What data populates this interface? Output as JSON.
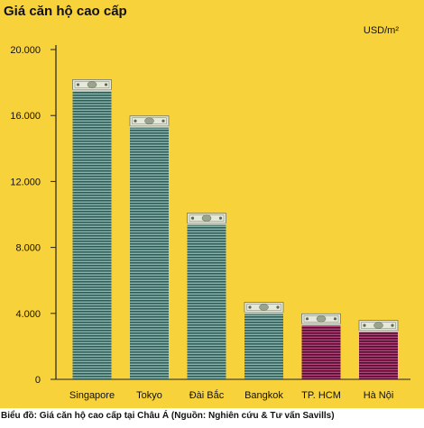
{
  "title": "Giá căn hộ cao cấp",
  "unit_text": "USD/m²",
  "caption": "Biểu đồ: Giá căn hộ cao cấp tại Châu Á (Nguồn: Nghiên cứu & Tư vấn Savills)",
  "colors": {
    "background": "#f7d23a",
    "bar_teal_dark": "#2f5a56",
    "bar_teal_light": "#86b3ab",
    "bar_magenta_dark": "#4e0c2c",
    "bar_magenta_light": "#b5407a",
    "banknote": "#e6e8da"
  },
  "chart_data": {
    "type": "bar",
    "title": "Giá căn hộ cao cấp",
    "ylabel": "USD/m²",
    "xlabel": "",
    "ylim": [
      0,
      20000
    ],
    "yticks": [
      0,
      4000,
      8000,
      12000,
      16000,
      20000
    ],
    "ytick_labels": [
      "0",
      "4.000",
      "8.000",
      "12.000",
      "16.000",
      "20.000"
    ],
    "grid": false,
    "categories": [
      "Singapore",
      "Tokyo",
      "Đài Bắc",
      "Bangkok",
      "TP. HCM",
      "Hà Nội"
    ],
    "values": [
      17900,
      15700,
      9800,
      4400,
      3700,
      3300
    ],
    "bar_styles": [
      "teal",
      "teal",
      "teal",
      "teal",
      "magenta",
      "magenta"
    ]
  }
}
